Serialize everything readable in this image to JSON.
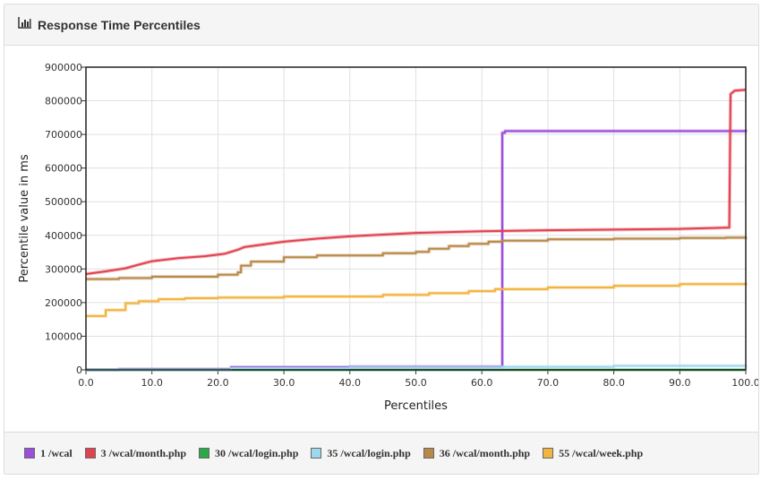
{
  "panel": {
    "title": "Response Time Percentiles",
    "icon": "bar-chart-icon"
  },
  "chart_data": {
    "type": "line",
    "xlabel": "Percentiles",
    "ylabel": "Percentile value in ms",
    "xlim": [
      0,
      100
    ],
    "ylim": [
      0,
      900000
    ],
    "xticks": [
      "0.0",
      "10.0",
      "20.0",
      "30.0",
      "40.0",
      "50.0",
      "60.0",
      "70.0",
      "80.0",
      "90.0",
      "100.0"
    ],
    "yticks": [
      "0",
      "100000",
      "200000",
      "300000",
      "400000",
      "500000",
      "600000",
      "700000",
      "800000",
      "900000"
    ],
    "grid": true,
    "legend_placement": "bottom",
    "series": [
      {
        "name": "1 /wcal",
        "color": "#9b4dde",
        "stepped": true,
        "points": [
          [
            0,
            0
          ],
          [
            5,
            2000
          ],
          [
            22,
            8000
          ],
          [
            40,
            9000
          ],
          [
            63,
            10000
          ],
          [
            63.1,
            705000
          ],
          [
            63.5,
            710000
          ],
          [
            100,
            714000
          ]
        ]
      },
      {
        "name": "3 /wcal/month.php",
        "color": "#e0434f",
        "stepped": false,
        "points": [
          [
            0,
            285000
          ],
          [
            3,
            293000
          ],
          [
            6,
            302000
          ],
          [
            8,
            313000
          ],
          [
            10,
            323000
          ],
          [
            14,
            332000
          ],
          [
            18,
            338000
          ],
          [
            21,
            345000
          ],
          [
            23,
            357000
          ],
          [
            24,
            365000
          ],
          [
            27,
            373000
          ],
          [
            30,
            381000
          ],
          [
            35,
            390000
          ],
          [
            40,
            397000
          ],
          [
            50,
            407000
          ],
          [
            60,
            412000
          ],
          [
            70,
            415000
          ],
          [
            90,
            419000
          ],
          [
            97.5,
            423000
          ],
          [
            97.7,
            820000
          ],
          [
            98.3,
            830000
          ],
          [
            100,
            833000
          ]
        ]
      },
      {
        "name": "30 /wcal/login.php",
        "color": "#2aa84a",
        "stepped": true,
        "points": [
          [
            0,
            0
          ],
          [
            30,
            0
          ],
          [
            60,
            0
          ],
          [
            100,
            0
          ]
        ]
      },
      {
        "name": "35 /wcal/login.php",
        "color": "#9ed8ef",
        "stepped": true,
        "points": [
          [
            0,
            0
          ],
          [
            22,
            5000
          ],
          [
            40,
            7000
          ],
          [
            63,
            9000
          ],
          [
            80,
            12000
          ],
          [
            100,
            14000
          ]
        ]
      },
      {
        "name": "36 /wcal/month.php",
        "color": "#b8894a",
        "stepped": true,
        "points": [
          [
            0,
            270000
          ],
          [
            5,
            273000
          ],
          [
            10,
            277000
          ],
          [
            20,
            283000
          ],
          [
            23,
            290000
          ],
          [
            23.5,
            310000
          ],
          [
            25,
            322000
          ],
          [
            30,
            335000
          ],
          [
            35,
            340000
          ],
          [
            45,
            347000
          ],
          [
            50,
            351000
          ],
          [
            52,
            360000
          ],
          [
            55,
            368000
          ],
          [
            58,
            375000
          ],
          [
            61,
            381000
          ],
          [
            63,
            384000
          ],
          [
            70,
            388000
          ],
          [
            80,
            390000
          ],
          [
            90,
            392000
          ],
          [
            97,
            393000
          ],
          [
            100,
            396000
          ]
        ]
      },
      {
        "name": "55 /wcal/week.php",
        "color": "#f2b441",
        "stepped": true,
        "points": [
          [
            0,
            160000
          ],
          [
            3,
            178000
          ],
          [
            6,
            198000
          ],
          [
            8,
            204000
          ],
          [
            11,
            210000
          ],
          [
            15,
            213000
          ],
          [
            20,
            215000
          ],
          [
            30,
            218000
          ],
          [
            45,
            223000
          ],
          [
            52,
            228000
          ],
          [
            58,
            234000
          ],
          [
            62,
            240000
          ],
          [
            70,
            245000
          ],
          [
            80,
            250000
          ],
          [
            90,
            255000
          ],
          [
            100,
            260000
          ]
        ]
      }
    ]
  }
}
